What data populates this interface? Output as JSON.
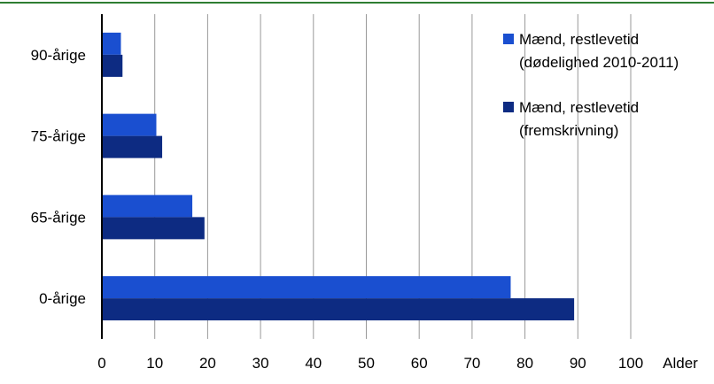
{
  "chart_data": {
    "type": "bar",
    "orientation": "horizontal",
    "title": "",
    "xlabel": "Alder",
    "ylabel": "",
    "categories": [
      "90-årige",
      "75-årige",
      "65-årige",
      "0-årige"
    ],
    "series": [
      {
        "name": "Mænd, restlevetid (dødelighed 2010-2011)",
        "legend_lines": [
          "Mænd, restlevetid",
          "(dødelighed 2010-2011)"
        ],
        "color": "#1a4fd0",
        "values": [
          3.6,
          10.3,
          17.1,
          77.3
        ]
      },
      {
        "name": "Mænd, restlevetid (fremskrivning)",
        "legend_lines": [
          "Mænd, restlevetid",
          "(fremskrivning)"
        ],
        "color": "#0d2b82",
        "values": [
          3.9,
          11.4,
          19.4,
          89.3
        ]
      }
    ],
    "xlim": [
      0,
      100
    ],
    "xticks": [
      "0",
      "10",
      "20",
      "30",
      "40",
      "50",
      "60",
      "70",
      "80",
      "90",
      "100"
    ],
    "grid": "vertical",
    "legend_position": "top-right"
  },
  "colors": {
    "frame_rule": "#2e7d32",
    "grid": "#999999",
    "axis": "#000000"
  }
}
